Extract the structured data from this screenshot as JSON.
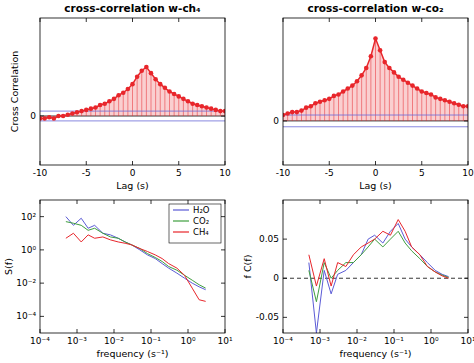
{
  "chart_data": [
    {
      "type": "stem",
      "title": "cross-correlation w-ch₄",
      "x_label": "Lag (s)",
      "y_label": "Cross Correlation",
      "color": "#e8262b",
      "x": [
        -10,
        -9.5,
        -9,
        -8.5,
        -8,
        -7.5,
        -7,
        -6.5,
        -6,
        -5.5,
        -5,
        -4.5,
        -4,
        -3.5,
        -3,
        -2.5,
        -2,
        -1.5,
        -1,
        -0.5,
        0,
        0.5,
        1,
        1.5,
        2,
        2.5,
        3,
        3.5,
        4,
        4.5,
        5,
        5.5,
        6,
        6.5,
        7,
        7.5,
        8,
        8.5,
        9,
        9.5,
        10
      ],
      "values": [
        -0.01,
        -0.01,
        -0.005,
        -0.01,
        0,
        0,
        0.005,
        0.01,
        0.015,
        0.02,
        0.025,
        0.03,
        0.035,
        0.045,
        0.05,
        0.06,
        0.07,
        0.085,
        0.095,
        0.11,
        0.13,
        0.16,
        0.185,
        0.2,
        0.175,
        0.15,
        0.13,
        0.115,
        0.1,
        0.09,
        0.08,
        0.07,
        0.06,
        0.05,
        0.045,
        0.04,
        0.035,
        0.03,
        0.025,
        0.02,
        0.02
      ],
      "confidence": [
        -0.02,
        0.02
      ],
      "xlim": [
        -10,
        10
      ],
      "xticks": [
        -10,
        -5,
        0,
        5,
        10
      ],
      "ylim": [
        -0.2,
        0.4
      ],
      "yticks": [
        0
      ],
      "marker": "circle"
    },
    {
      "type": "stem",
      "title": "cross-correlation w-co₂",
      "x_label": "Lag (s)",
      "color": "#e8262b",
      "x": [
        -10,
        -9.5,
        -9,
        -8.5,
        -8,
        -7.5,
        -7,
        -6.5,
        -6,
        -5.5,
        -5,
        -4.5,
        -4,
        -3.5,
        -3,
        -2.5,
        -2,
        -1.5,
        -1,
        -0.5,
        0,
        0.5,
        1,
        1.5,
        2,
        2.5,
        3,
        3.5,
        4,
        4.5,
        5,
        5.5,
        6,
        6.5,
        7,
        7.5,
        8,
        8.5,
        9,
        9.5,
        10
      ],
      "values": [
        0.02,
        0.025,
        0.03,
        0.03,
        0.035,
        0.045,
        0.05,
        0.06,
        0.065,
        0.07,
        0.075,
        0.085,
        0.09,
        0.1,
        0.11,
        0.12,
        0.135,
        0.155,
        0.18,
        0.22,
        0.28,
        0.24,
        0.2,
        0.18,
        0.165,
        0.15,
        0.14,
        0.13,
        0.12,
        0.11,
        0.1,
        0.095,
        0.09,
        0.08,
        0.075,
        0.07,
        0.065,
        0.06,
        0.055,
        0.05,
        0.05
      ],
      "confidence": [
        -0.02,
        0.02
      ],
      "xlim": [
        -10,
        10
      ],
      "xticks": [
        -10,
        -5,
        0,
        5,
        10
      ],
      "ylim": [
        -0.15,
        0.35
      ],
      "yticks": [
        0
      ],
      "marker": "circle"
    },
    {
      "type": "line",
      "x_label": "frequency (s⁻¹)",
      "y_label": "S(f)",
      "log": true,
      "legend": "top-right",
      "x": [
        0.0005,
        0.0008,
        0.0013,
        0.002,
        0.003,
        0.005,
        0.008,
        0.013,
        0.02,
        0.03,
        0.05,
        0.08,
        0.13,
        0.2,
        0.3,
        0.5,
        0.8,
        1.3,
        2,
        3
      ],
      "series": [
        {
          "name": "H₂O",
          "color": "#5b5bd6",
          "values": [
            100,
            30,
            80,
            20,
            30,
            10,
            8,
            5,
            3,
            2,
            1,
            0.5,
            0.3,
            0.15,
            0.08,
            0.04,
            0.02,
            0.01,
            0.006,
            0.004
          ]
        },
        {
          "name": "CO₂",
          "color": "#3f9e3f",
          "values": [
            50,
            40,
            30,
            15,
            20,
            10,
            6,
            5,
            3,
            2,
            1.2,
            0.6,
            0.35,
            0.2,
            0.1,
            0.06,
            0.03,
            0.015,
            0.008,
            0.005
          ]
        },
        {
          "name": "CH₄",
          "color": "#e8262b",
          "values": [
            5,
            10,
            3,
            8,
            5,
            6,
            4,
            3,
            2.5,
            2,
            1.2,
            0.8,
            0.5,
            0.3,
            0.15,
            0.08,
            0.03,
            0.005,
            0.001,
            0.0008
          ]
        }
      ],
      "xlim": [
        0.0001,
        10
      ],
      "xticks": [
        {
          "value": 0.0001,
          "label": "10⁻⁴"
        },
        {
          "value": 0.001,
          "label": "10⁻³"
        },
        {
          "value": 0.01,
          "label": "10⁻²"
        },
        {
          "value": 0.1,
          "label": "10⁻¹"
        },
        {
          "value": 1,
          "label": "10⁰"
        },
        {
          "value": 10,
          "label": "10¹"
        }
      ],
      "ylim": [
        1e-05,
        1000
      ],
      "yticks": [
        {
          "value": 0.0001,
          "label": "10⁻⁴"
        },
        {
          "value": 0.01,
          "label": "10⁻²"
        },
        {
          "value": 1,
          "label": "10⁰"
        },
        {
          "value": 100,
          "label": "10²"
        }
      ]
    },
    {
      "type": "line",
      "x_label": "frequency (s⁻¹)",
      "y_label": "f C(f)",
      "log": "x",
      "x": [
        0.0005,
        0.0008,
        0.0013,
        0.002,
        0.003,
        0.005,
        0.008,
        0.013,
        0.02,
        0.03,
        0.05,
        0.08,
        0.13,
        0.2,
        0.3,
        0.5,
        0.8,
        1.3,
        2,
        3
      ],
      "series": [
        {
          "color": "#5b5bd6",
          "values": [
            0.02,
            -0.07,
            0.01,
            -0.02,
            0.005,
            0.01,
            0.02,
            0.03,
            0.05,
            0.055,
            0.045,
            0.06,
            0.07,
            0.05,
            0.04,
            0.03,
            0.02,
            0.01,
            0.005,
            0.002
          ]
        },
        {
          "color": "#3f9e3f",
          "values": [
            0.01,
            -0.03,
            0.02,
            0,
            0.01,
            0.02,
            0.02,
            0.03,
            0.04,
            0.05,
            0.04,
            0.05,
            0.06,
            0.045,
            0.035,
            0.025,
            0.015,
            0.008,
            0.004,
            0.001
          ]
        },
        {
          "color": "#e8262b",
          "values": [
            0.03,
            -0.01,
            0.025,
            -0.01,
            0.02,
            0.015,
            0.03,
            0.04,
            0.045,
            0.05,
            0.06,
            0.055,
            0.075,
            0.06,
            0.04,
            0.03,
            0.015,
            0.008,
            0.003,
            0
          ]
        }
      ],
      "xlim": [
        0.0001,
        10
      ],
      "xticks": [
        {
          "value": 0.0001,
          "label": "10⁻⁴"
        },
        {
          "value": 0.001,
          "label": "10⁻³"
        },
        {
          "value": 0.01,
          "label": "10⁻²"
        },
        {
          "value": 0.1,
          "label": "10⁻¹"
        },
        {
          "value": 1,
          "label": "10⁰"
        },
        {
          "value": 10,
          "label": "10¹"
        }
      ],
      "ylim": [
        -0.07,
        0.1
      ],
      "yticks": [
        -0.05,
        0,
        0.05
      ]
    }
  ]
}
